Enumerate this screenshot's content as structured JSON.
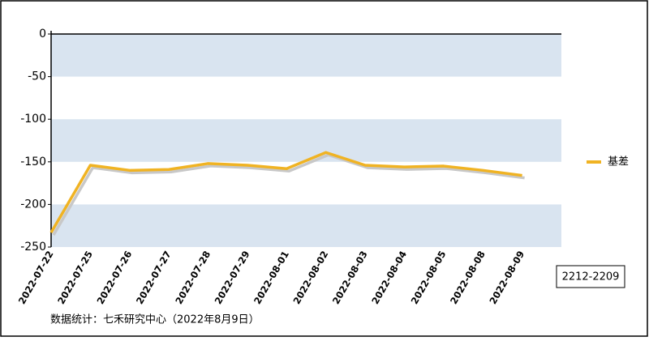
{
  "chart_data": {
    "type": "line",
    "categories": [
      "2022-07-22",
      "2022-07-25",
      "2022-07-26",
      "2022-07-27",
      "2022-07-28",
      "2022-07-29",
      "2022-08-01",
      "2022-08-02",
      "2022-08-03",
      "2022-08-04",
      "2022-08-05",
      "2022-08-08",
      "2022-08-09"
    ],
    "series": [
      {
        "name": "基差",
        "color": "#f0b323",
        "values": [
          -233,
          -154,
          -160,
          -159,
          -152,
          -154,
          -158,
          -139,
          -154,
          -156,
          -155,
          -160,
          -166
        ]
      }
    ],
    "ylim": [
      -250,
      0
    ],
    "yticks": [
      0,
      -50,
      -100,
      -150,
      -200,
      -250
    ],
    "band_color": "#d9e4f0",
    "legend": "right",
    "annotation": "2212-2209",
    "source": "数据统计：七禾研究中心（2022年8月9日）"
  }
}
